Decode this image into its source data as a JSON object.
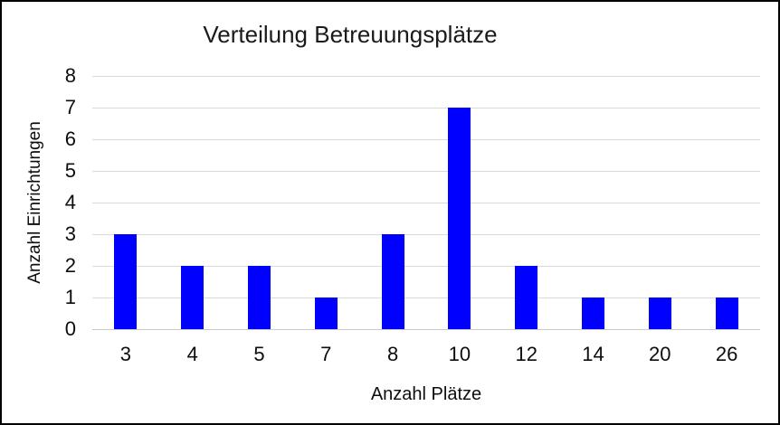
{
  "chart_data": {
    "type": "bar",
    "title": "Verteilung Betreuungsplätze",
    "xlabel": "Anzahl Plätze",
    "ylabel": "Anzahl Einrichtungen",
    "categories": [
      "3",
      "4",
      "5",
      "7",
      "8",
      "10",
      "12",
      "14",
      "20",
      "26"
    ],
    "values": [
      3,
      2,
      2,
      1,
      3,
      7,
      2,
      1,
      1,
      1
    ],
    "ylim": [
      0,
      8
    ],
    "yticks": [
      0,
      1,
      2,
      3,
      4,
      5,
      6,
      7,
      8
    ],
    "grid": "horizontal",
    "legend": "none",
    "bar_color": "#0000FE",
    "gridline_color": "#D9D9D9",
    "axis_line_color": "#C9C7C7",
    "text_color": "#000000",
    "background_color": "#FFFFFF",
    "border_color": "#000000"
  }
}
